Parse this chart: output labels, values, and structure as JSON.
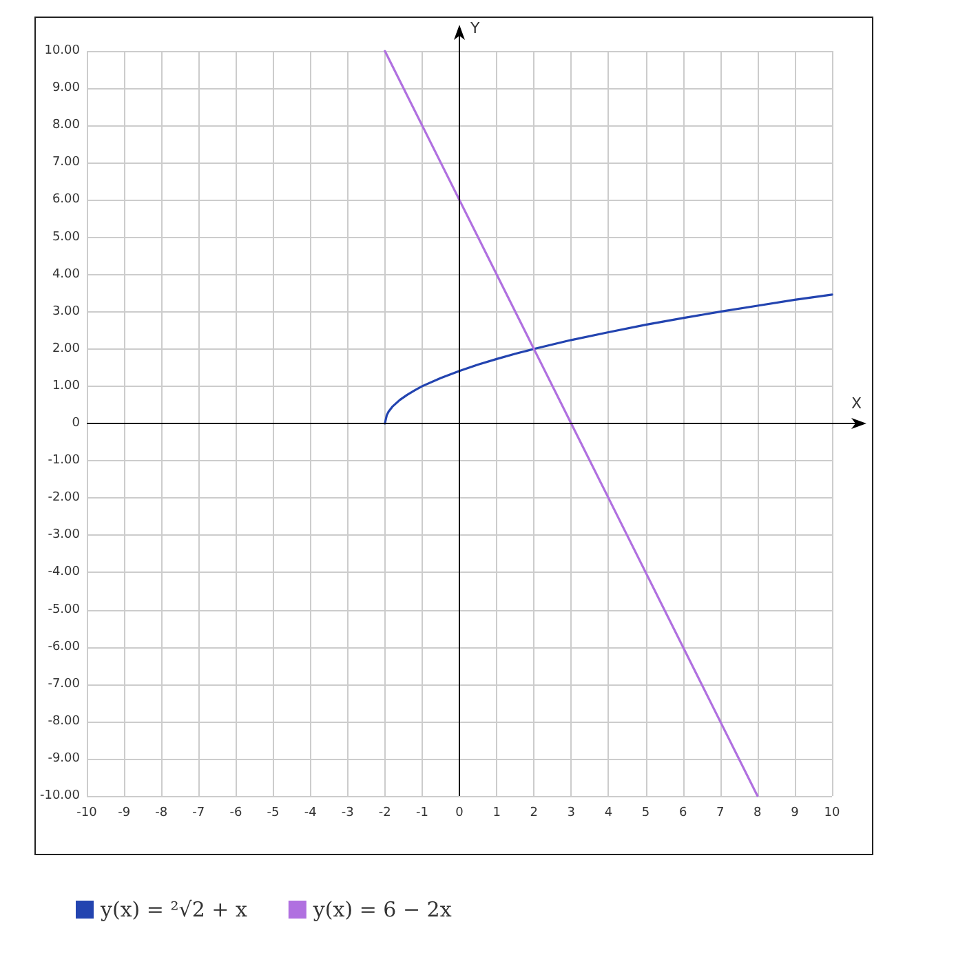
{
  "chart_data": {
    "type": "line",
    "xlabel": "X",
    "ylabel": "Y",
    "xlim": [
      -10,
      10
    ],
    "ylim": [
      -10,
      10
    ],
    "xticks": [
      -10,
      -9,
      -8,
      -7,
      -6,
      -5,
      -4,
      -3,
      -2,
      -1,
      0,
      1,
      2,
      3,
      4,
      5,
      6,
      7,
      8,
      9,
      10
    ],
    "yticks": [
      {
        "value": -10,
        "label": "-10.00"
      },
      {
        "value": -9,
        "label": "-9.00"
      },
      {
        "value": -8,
        "label": "-8.00"
      },
      {
        "value": -7,
        "label": "-7.00"
      },
      {
        "value": -6,
        "label": "-6.00"
      },
      {
        "value": -5,
        "label": "-5.00"
      },
      {
        "value": -4,
        "label": "-4.00"
      },
      {
        "value": -3,
        "label": "-3.00"
      },
      {
        "value": -2,
        "label": "-2.00"
      },
      {
        "value": -1,
        "label": "-1.00"
      },
      0,
      {
        "value": 1,
        "label": "1.00"
      },
      {
        "value": 2,
        "label": "2.00"
      },
      {
        "value": 3,
        "label": "3.00"
      },
      {
        "value": 4,
        "label": "4.00"
      },
      {
        "value": 5,
        "label": "5.00"
      },
      {
        "value": 6,
        "label": "6.00"
      },
      {
        "value": 7,
        "label": "7.00"
      },
      {
        "value": 8,
        "label": "8.00"
      },
      {
        "value": 9,
        "label": "9.00"
      },
      {
        "value": 10,
        "label": "10.00"
      }
    ],
    "grid": true,
    "legend": "bottom",
    "marker": "none",
    "series": [
      {
        "name": "y(x) = ²√2 + x",
        "color": "#2344b0",
        "x": [
          -2,
          -1.95,
          -1.9,
          -1.8,
          -1.6,
          -1.4,
          -1.2,
          -1,
          -0.5,
          0,
          0.5,
          1,
          1.5,
          2,
          3,
          4,
          5,
          6,
          7,
          8,
          9,
          10
        ],
        "values": [
          0,
          0.22,
          0.32,
          0.45,
          0.63,
          0.77,
          0.89,
          1,
          1.22,
          1.41,
          1.58,
          1.73,
          1.87,
          2,
          2.24,
          2.45,
          2.65,
          2.83,
          3,
          3.16,
          3.32,
          3.46
        ]
      },
      {
        "name": "y(x) = 6 − 2x",
        "color": "#b070e0",
        "x": [
          -2,
          3,
          8
        ],
        "values": [
          10,
          0,
          -10
        ]
      }
    ]
  }
}
